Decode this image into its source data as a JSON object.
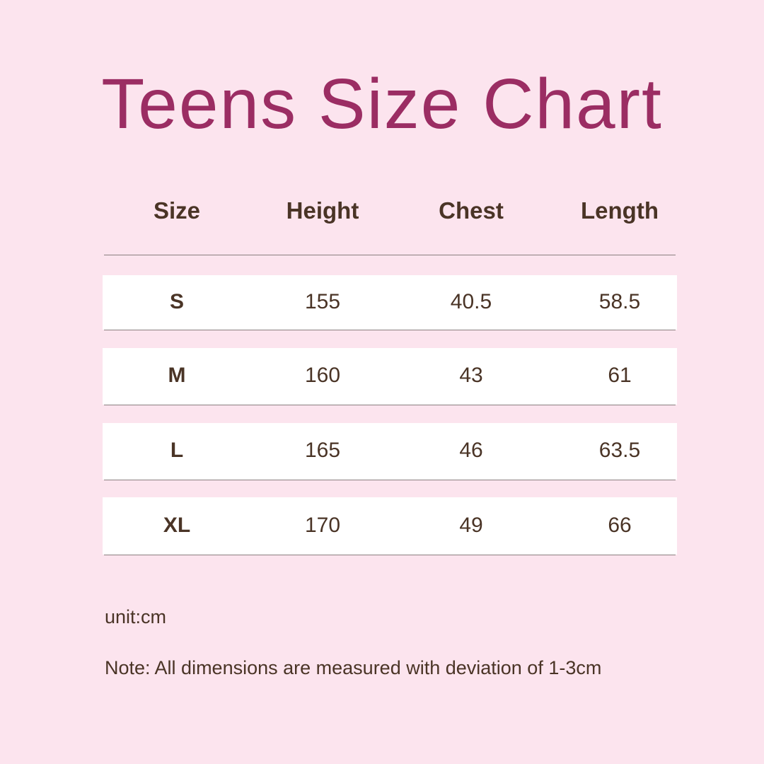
{
  "title": "Teens Size Chart",
  "table": {
    "headers": [
      "Size",
      "Height",
      "Chest",
      "Length"
    ],
    "rows": [
      [
        "S",
        "155",
        "40.5",
        "58.5"
      ],
      [
        "M",
        "160",
        "43",
        "61"
      ],
      [
        "L",
        "165",
        "46",
        "63.5"
      ],
      [
        "XL",
        "170",
        "49",
        "66"
      ]
    ]
  },
  "unit": "unit:cm",
  "note": "Note: All dimensions are measured with deviation of 1-3cm",
  "colors": {
    "background": "#fce4ee",
    "title": "#9b2d63",
    "text": "#4a3426",
    "row": "#ffffff"
  }
}
